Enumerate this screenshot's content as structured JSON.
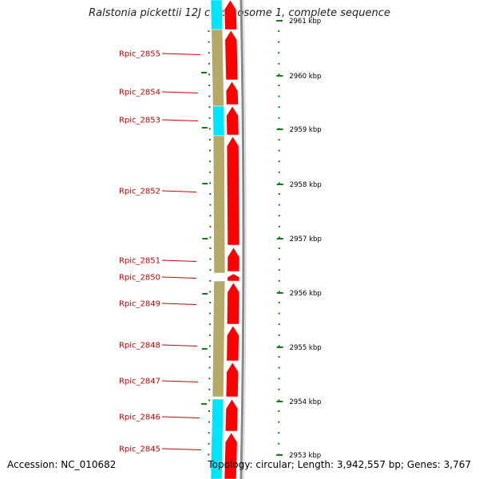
{
  "title": "Ralstonia pickettii 12J chromosome 1, complete sequence",
  "footer": {
    "accession": "Accession: NC_010682",
    "summary": "Topology: circular; Length: 3,942,557 bp; Genes: 3,767"
  },
  "colors": {
    "cds_forward": "#ff0000",
    "cds_reverse": "#b5a96a",
    "rna": "#00e5ff",
    "tick": "#1a7a1a",
    "backbone": "#888888",
    "gene_label": "#cc0000"
  },
  "genes": [
    {
      "label": "Rpic_2855"
    },
    {
      "label": "Rpic_2854"
    },
    {
      "label": "Rpic_2853"
    },
    {
      "label": "Rpic_2852"
    },
    {
      "label": "Rpic_2851"
    },
    {
      "label": "Rpic_2850"
    },
    {
      "label": "Rpic_2849"
    },
    {
      "label": "Rpic_2848"
    },
    {
      "label": "Rpic_2847"
    },
    {
      "label": "Rpic_2846"
    },
    {
      "label": "Rpic_2845"
    }
  ],
  "ticks": [
    {
      "label": "2961 kbp"
    },
    {
      "label": "2960 kbp"
    },
    {
      "label": "2959 kbp"
    },
    {
      "label": "2958 kbp"
    },
    {
      "label": "2957 kbp"
    },
    {
      "label": "2956 kbp"
    },
    {
      "label": "2955 kbp"
    },
    {
      "label": "2954 kbp"
    },
    {
      "label": "2953 kbp"
    }
  ]
}
